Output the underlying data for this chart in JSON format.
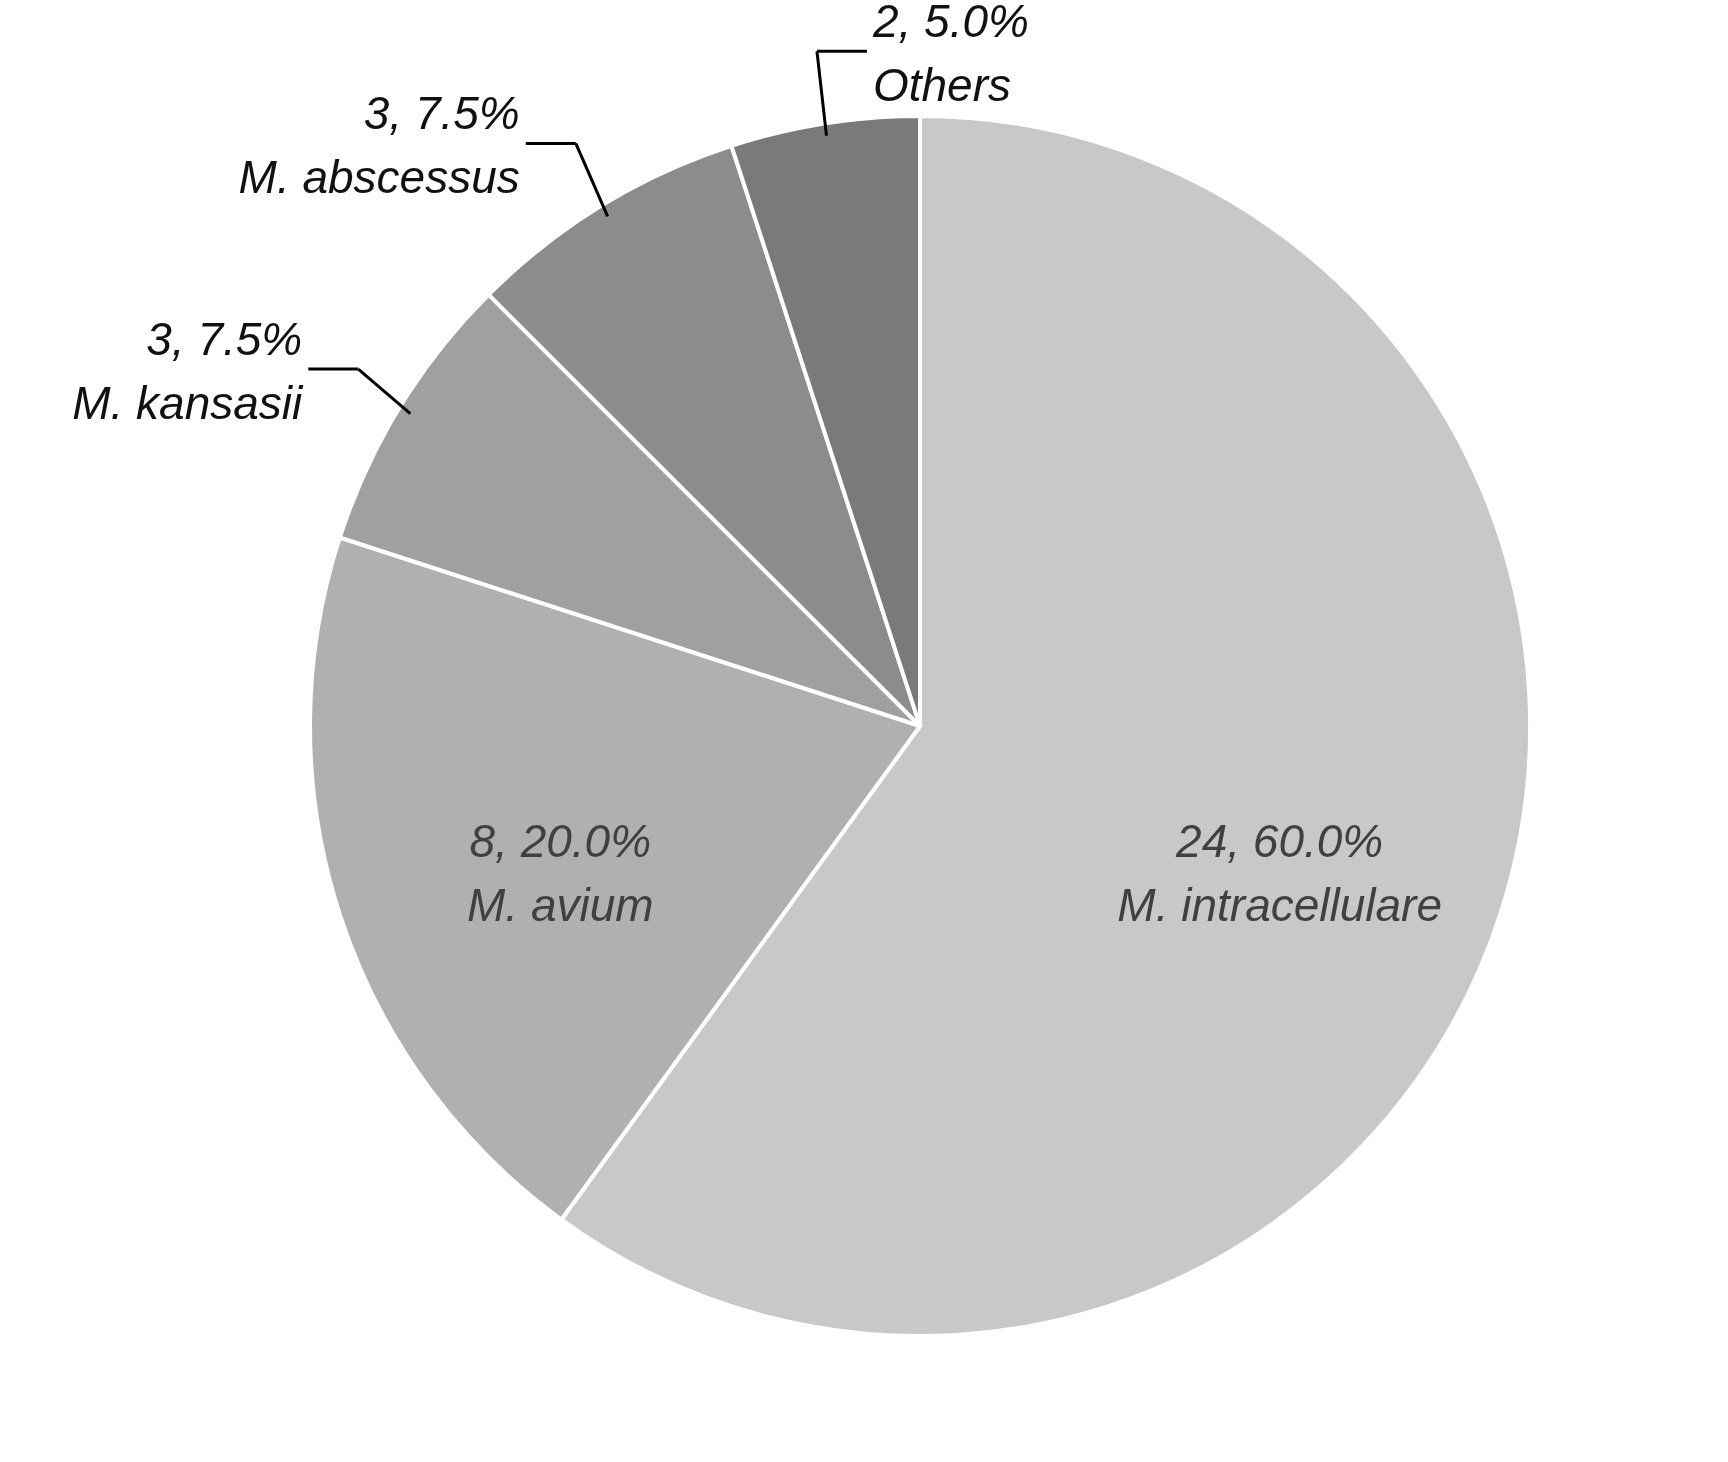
{
  "chart_data": {
    "type": "pie",
    "categories": [
      "M. intracellulare",
      "M. avium",
      "M. kansasii",
      "M. abscessus",
      "Others"
    ],
    "values": [
      24,
      8,
      3,
      3,
      2
    ],
    "value_labels": [
      "24, 60.0%",
      "8, 20.0%",
      "3, 7.5%",
      "3, 7.5%",
      "2, 5.0%"
    ],
    "colors": [
      "#c8c8c8",
      "#b0b0b0",
      "#a0a0a0",
      "#8c8c8c",
      "#7a7a7a"
    ],
    "legend": false
  }
}
